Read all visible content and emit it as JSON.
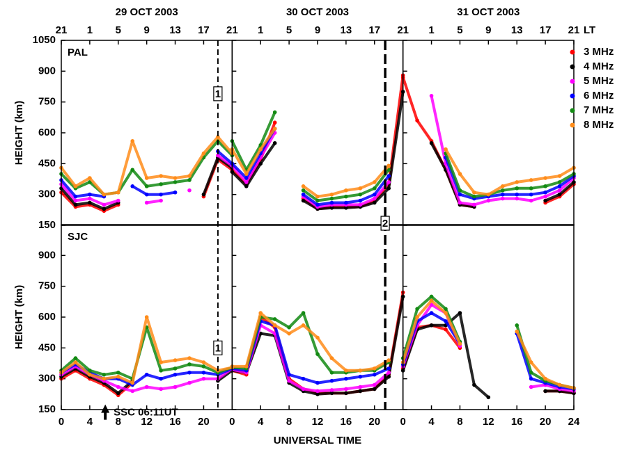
{
  "chart_data": {
    "type": "scatter",
    "x_label": "UNIVERSAL TIME",
    "lt_label": "LT",
    "x": [
      0,
      2,
      4,
      6,
      8,
      10,
      12,
      14,
      16,
      18,
      20,
      22,
      24
    ],
    "xlim": [
      0,
      24
    ],
    "ylim": [
      150,
      1050
    ],
    "columns": [
      {
        "date": "29 OCT 2003",
        "xticks": [
          0,
          4,
          8,
          12,
          16,
          20
        ],
        "event_ut": 22,
        "lt_ticks": [
          {
            "value": 0,
            "label": "21"
          },
          {
            "value": 4,
            "label": "1"
          },
          {
            "value": 8,
            "label": "5"
          },
          {
            "value": 12,
            "label": "9"
          },
          {
            "value": 16,
            "label": "13"
          },
          {
            "value": 20,
            "label": "17"
          }
        ]
      },
      {
        "date": "30 OCT 2003",
        "xticks": [
          0,
          4,
          8,
          12,
          16,
          20
        ],
        "event_ut": 21.5,
        "lt_ticks": [
          {
            "value": 0,
            "label": "21"
          },
          {
            "value": 4,
            "label": "1"
          },
          {
            "value": 8,
            "label": "5"
          },
          {
            "value": 12,
            "label": "9"
          },
          {
            "value": 16,
            "label": "13"
          },
          {
            "value": 20,
            "label": "17"
          }
        ]
      },
      {
        "date": "31 OCT 2003",
        "xticks": [
          0,
          4,
          8,
          12,
          16,
          20,
          24
        ],
        "lt_ticks": [
          {
            "value": 0,
            "label": "21"
          },
          {
            "value": 4,
            "label": "1"
          },
          {
            "value": 8,
            "label": "5"
          },
          {
            "value": 12,
            "label": "9"
          },
          {
            "value": 16,
            "label": "13"
          },
          {
            "value": 20,
            "label": "17"
          },
          {
            "value": 24,
            "label": "21"
          }
        ]
      }
    ],
    "rows": [
      {
        "station": "PAL",
        "y_label": "HEIGHT (km)",
        "yticks": [
          150,
          300,
          450,
          600,
          750,
          900,
          1050
        ]
      },
      {
        "station": "SJC",
        "y_label": "HEIGHT (km)",
        "yticks": [
          150,
          300,
          450,
          600,
          750,
          900
        ]
      }
    ],
    "series": [
      {
        "name": "3 MHz",
        "color": "#ff0000",
        "values": [
          [
            310,
            240,
            250,
            220,
            250,
            null,
            null,
            null,
            null,
            null,
            290,
            470,
            420
          ],
          [
            420,
            350,
            470,
            650,
            null,
            280,
            230,
            240,
            240,
            240,
            270,
            350,
            880
          ],
          [
            870,
            660,
            560,
            420,
            250,
            240,
            null,
            null,
            null,
            null,
            260,
            290,
            350
          ],
          [
            300,
            340,
            300,
            270,
            220,
            280,
            null,
            null,
            null,
            null,
            null,
            null,
            null
          ],
          [
            340,
            320,
            600,
            550,
            300,
            250,
            230,
            230,
            230,
            240,
            250,
            320,
            720
          ],
          [
            350,
            550,
            560,
            540,
            450,
            null,
            null,
            null,
            null,
            null,
            240,
            240,
            230
          ]
        ]
      },
      {
        "name": "4 MHz",
        "color": "#000000",
        "values": [
          [
            330,
            250,
            260,
            230,
            260,
            null,
            null,
            null,
            null,
            null,
            300,
            480,
            430
          ],
          [
            410,
            340,
            450,
            550,
            null,
            270,
            230,
            235,
            235,
            240,
            260,
            330,
            800
          ],
          [
            null,
            null,
            550,
            420,
            250,
            240,
            null,
            null,
            null,
            null,
            270,
            300,
            360
          ],
          [
            310,
            350,
            310,
            280,
            230,
            290,
            null,
            null,
            null,
            null,
            null,
            290,
            340
          ],
          [
            340,
            330,
            520,
            510,
            280,
            240,
            225,
            230,
            230,
            240,
            250,
            310,
            700
          ],
          [
            340,
            540,
            560,
            560,
            620,
            270,
            210,
            null,
            null,
            null,
            240,
            240,
            230
          ]
        ]
      },
      {
        "name": "5 MHz",
        "color": "#ff00ff",
        "values": [
          [
            350,
            270,
            280,
            250,
            270,
            null,
            260,
            270,
            null,
            320,
            null,
            490,
            440
          ],
          [
            440,
            360,
            480,
            600,
            null,
            290,
            240,
            250,
            250,
            250,
            280,
            360,
            null
          ],
          [
            null,
            null,
            780,
            450,
            260,
            250,
            270,
            280,
            280,
            270,
            290,
            320,
            380
          ],
          [
            320,
            360,
            320,
            290,
            260,
            240,
            260,
            250,
            260,
            280,
            300,
            300,
            350
          ],
          [
            345,
            330,
            560,
            520,
            290,
            250,
            240,
            245,
            250,
            260,
            270,
            330,
            null
          ],
          [
            360,
            560,
            660,
            620,
            460,
            null,
            null,
            null,
            null,
            260,
            270,
            250,
            240
          ]
        ]
      },
      {
        "name": "6 MHz",
        "color": "#0000ff",
        "values": [
          [
            370,
            290,
            300,
            290,
            null,
            340,
            300,
            300,
            310,
            null,
            null,
            510,
            450
          ],
          [
            450,
            380,
            500,
            620,
            null,
            300,
            250,
            260,
            260,
            270,
            300,
            390,
            null
          ],
          [
            null,
            null,
            null,
            480,
            300,
            280,
            290,
            300,
            300,
            300,
            310,
            340,
            390
          ],
          [
            330,
            370,
            330,
            300,
            300,
            270,
            320,
            300,
            320,
            330,
            330,
            320,
            350
          ],
          [
            350,
            340,
            580,
            560,
            320,
            300,
            280,
            290,
            300,
            310,
            320,
            350,
            null
          ],
          [
            370,
            580,
            620,
            580,
            470,
            null,
            null,
            null,
            520,
            300,
            280,
            260,
            250
          ]
        ]
      },
      {
        "name": "7 MHz",
        "color": "#138a13",
        "values": [
          [
            400,
            330,
            360,
            300,
            310,
            420,
            340,
            350,
            360,
            370,
            480,
            560,
            490
          ],
          [
            560,
            420,
            540,
            700,
            null,
            320,
            270,
            280,
            290,
            300,
            330,
            420,
            null
          ],
          [
            null,
            null,
            null,
            500,
            320,
            290,
            300,
            320,
            330,
            330,
            340,
            360,
            400
          ],
          [
            340,
            400,
            340,
            320,
            330,
            300,
            550,
            340,
            350,
            370,
            360,
            330,
            355
          ],
          [
            355,
            350,
            600,
            590,
            550,
            620,
            420,
            330,
            330,
            340,
            340,
            380,
            null
          ],
          [
            400,
            640,
            700,
            640,
            480,
            null,
            null,
            null,
            560,
            330,
            290,
            270,
            255
          ]
        ]
      },
      {
        "name": "8 MHz",
        "color": "#ff8c1a",
        "values": [
          [
            430,
            340,
            380,
            300,
            310,
            560,
            380,
            390,
            380,
            390,
            500,
            580,
            500
          ],
          [
            520,
            400,
            520,
            620,
            null,
            340,
            290,
            300,
            320,
            330,
            360,
            440,
            null
          ],
          [
            null,
            null,
            null,
            520,
            400,
            310,
            300,
            340,
            360,
            370,
            380,
            390,
            430
          ],
          [
            330,
            380,
            320,
            300,
            310,
            280,
            600,
            380,
            390,
            400,
            380,
            340,
            355
          ],
          [
            360,
            360,
            620,
            560,
            520,
            560,
            500,
            400,
            340,
            340,
            350,
            390,
            null
          ],
          [
            380,
            600,
            680,
            620,
            470,
            null,
            null,
            null,
            530,
            380,
            300,
            270,
            255
          ]
        ]
      }
    ],
    "annotations": [
      {
        "text": "1",
        "row": 0,
        "col": 0,
        "x": 22,
        "y": 790
      },
      {
        "text": "1",
        "row": 1,
        "col": 0,
        "x": 22,
        "y": 450
      },
      {
        "text": "2",
        "row": 0,
        "col": 1,
        "x": 21.5,
        "y": 160
      },
      {
        "text": "SSC 06:11UT",
        "row": 1,
        "col": 0,
        "x": 6.18,
        "y": 175
      }
    ]
  }
}
